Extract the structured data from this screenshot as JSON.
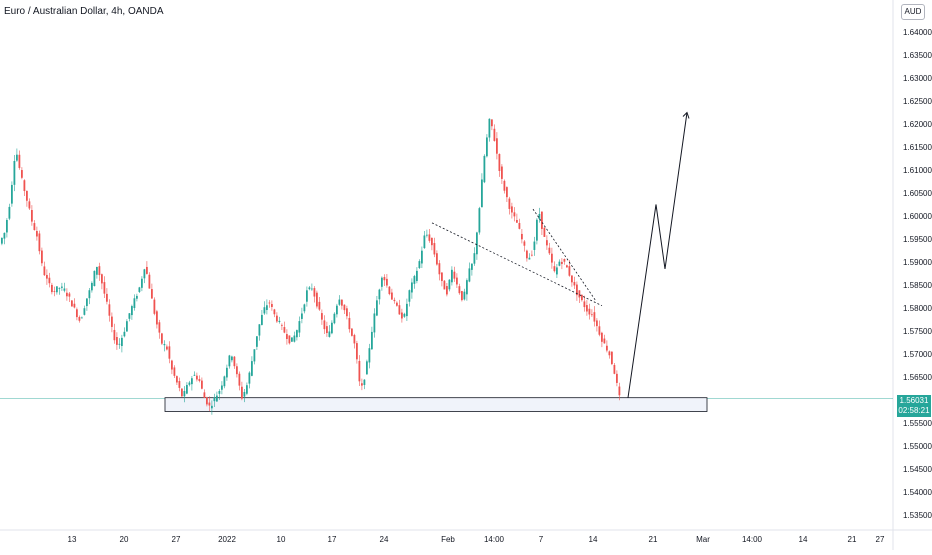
{
  "header": {
    "symbol_title": "Euro / Australian Dollar, 4h, OANDA",
    "currency": "AUD"
  },
  "price_tag": {
    "price": "1.56031",
    "countdown": "02:58:21"
  },
  "colors": {
    "up": "#26a69a",
    "down": "#ef5350",
    "last_price_line": "#26a69a",
    "annotation": "#131722"
  },
  "chart_data": {
    "type": "candlestick",
    "symbol": "EURAUD",
    "timeframe": "4h",
    "source": "OANDA",
    "ylim": [
      1.532,
      1.646
    ],
    "last_price": 1.56031,
    "y_ticks": [
      "1.64000",
      "1.63500",
      "1.63000",
      "1.62500",
      "1.62000",
      "1.61500",
      "1.61000",
      "1.60500",
      "1.60000",
      "1.59500",
      "1.59000",
      "1.58500",
      "1.58000",
      "1.57500",
      "1.57000",
      "1.56500",
      "1.55500",
      "1.55000",
      "1.54500",
      "1.54000",
      "1.53500"
    ],
    "x_ticks": [
      "13",
      "20",
      "27",
      "2022",
      "10",
      "17",
      "24",
      "Feb",
      "14:00",
      "7",
      "14",
      "21",
      "Mar",
      "14:00",
      "14",
      "21",
      "27"
    ],
    "price_path": [
      [
        0,
        1.594
      ],
      [
        3,
        1.5965
      ],
      [
        6,
        1.6035
      ],
      [
        9,
        1.615
      ],
      [
        12,
        1.6085
      ],
      [
        15,
        1.604
      ],
      [
        18,
        1.599
      ],
      [
        21,
        1.5955
      ],
      [
        24,
        1.5885
      ],
      [
        27,
        1.5855
      ],
      [
        30,
        1.5835
      ],
      [
        33,
        1.5845
      ],
      [
        36,
        1.584
      ],
      [
        39,
        1.582
      ],
      [
        42,
        1.5795
      ],
      [
        45,
        1.577
      ],
      [
        48,
        1.5815
      ],
      [
        51,
        1.5845
      ],
      [
        54,
        1.5895
      ],
      [
        57,
        1.5855
      ],
      [
        60,
        1.5805
      ],
      [
        63,
        1.5745
      ],
      [
        66,
        1.5715
      ],
      [
        69,
        1.5745
      ],
      [
        72,
        1.5785
      ],
      [
        75,
        1.5815
      ],
      [
        78,
        1.5845
      ],
      [
        81,
        1.5895
      ],
      [
        84,
        1.5835
      ],
      [
        87,
        1.5775
      ],
      [
        90,
        1.5725
      ],
      [
        93,
        1.5715
      ],
      [
        96,
        1.5665
      ],
      [
        99,
        1.5635
      ],
      [
        102,
        1.5605
      ],
      [
        105,
        1.5635
      ],
      [
        108,
        1.5655
      ],
      [
        111,
        1.5645
      ],
      [
        114,
        1.5605
      ],
      [
        117,
        1.5585
      ],
      [
        120,
        1.5605
      ],
      [
        123,
        1.5625
      ],
      [
        126,
        1.5665
      ],
      [
        129,
        1.5705
      ],
      [
        132,
        1.5655
      ],
      [
        135,
        1.5605
      ],
      [
        138,
        1.5635
      ],
      [
        141,
        1.5695
      ],
      [
        144,
        1.5755
      ],
      [
        147,
        1.5795
      ],
      [
        150,
        1.5815
      ],
      [
        153,
        1.5785
      ],
      [
        156,
        1.5765
      ],
      [
        159,
        1.5745
      ],
      [
        162,
        1.5725
      ],
      [
        165,
        1.5745
      ],
      [
        168,
        1.5785
      ],
      [
        171,
        1.5835
      ],
      [
        174,
        1.5845
      ],
      [
        177,
        1.5805
      ],
      [
        180,
        1.5765
      ],
      [
        183,
        1.5735
      ],
      [
        186,
        1.5785
      ],
      [
        189,
        1.5825
      ],
      [
        192,
        1.5795
      ],
      [
        195,
        1.5755
      ],
      [
        198,
        1.5715
      ],
      [
        201,
        1.5615
      ],
      [
        204,
        1.5665
      ],
      [
        207,
        1.5745
      ],
      [
        210,
        1.5815
      ],
      [
        213,
        1.5875
      ],
      [
        216,
        1.5845
      ],
      [
        219,
        1.5815
      ],
      [
        222,
        1.5795
      ],
      [
        225,
        1.5775
      ],
      [
        228,
        1.5835
      ],
      [
        231,
        1.5865
      ],
      [
        234,
        1.5905
      ],
      [
        237,
        1.5965
      ],
      [
        240,
        1.5945
      ],
      [
        243,
        1.5905
      ],
      [
        246,
        1.5855
      ],
      [
        249,
        1.5835
      ],
      [
        252,
        1.5885
      ],
      [
        255,
        1.5845
      ],
      [
        258,
        1.5815
      ],
      [
        261,
        1.5875
      ],
      [
        264,
        1.5905
      ],
      [
        267,
        1.6015
      ],
      [
        270,
        1.6135
      ],
      [
        273,
        1.6215
      ],
      [
        276,
        1.6155
      ],
      [
        279,
        1.6085
      ],
      [
        282,
        1.6045
      ],
      [
        285,
        1.6005
      ],
      [
        288,
        1.5985
      ],
      [
        291,
        1.5945
      ],
      [
        294,
        1.5905
      ],
      [
        297,
        1.5925
      ],
      [
        300,
        1.6015
      ],
      [
        303,
        1.5955
      ],
      [
        306,
        1.5915
      ],
      [
        309,
        1.5875
      ],
      [
        312,
        1.5905
      ],
      [
        315,
        1.5895
      ],
      [
        318,
        1.5865
      ],
      [
        321,
        1.5835
      ],
      [
        324,
        1.5815
      ],
      [
        327,
        1.5795
      ],
      [
        330,
        1.5785
      ],
      [
        333,
        1.5755
      ],
      [
        336,
        1.5725
      ],
      [
        339,
        1.5705
      ],
      [
        342,
        1.5665
      ],
      [
        345,
        1.5605
      ]
    ],
    "annotations": [
      {
        "type": "support_zone",
        "y": [
          1.5575,
          1.5605
        ],
        "x": [
          95,
          407
        ]
      },
      {
        "type": "trendline",
        "from": [
          253,
          1.5985
        ],
        "to": [
          337,
          1.5805
        ]
      },
      {
        "type": "trendline",
        "from": [
          303,
          1.6015
        ],
        "to": [
          337,
          1.5815
        ]
      },
      {
        "type": "projection_path",
        "points": [
          [
            356,
            1.5605
          ],
          [
            382,
            1.6025
          ],
          [
            391,
            1.5885
          ],
          [
            409,
            1.6225
          ]
        ]
      }
    ]
  }
}
